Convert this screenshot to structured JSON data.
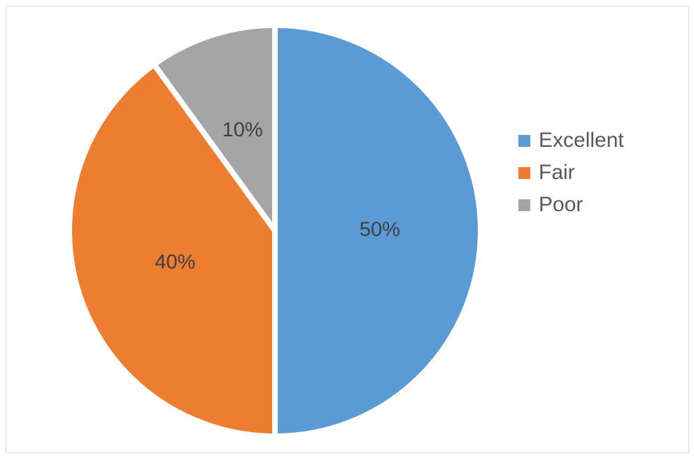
{
  "chart_data": {
    "type": "pie",
    "categories": [
      "Excellent",
      "Fair",
      "Poor"
    ],
    "values": [
      50,
      40,
      10
    ],
    "value_labels": [
      "50%",
      "40%",
      "10%"
    ],
    "colors": [
      "#5b9bd5",
      "#ed7d31",
      "#a5a5a5"
    ],
    "legend": "right"
  }
}
